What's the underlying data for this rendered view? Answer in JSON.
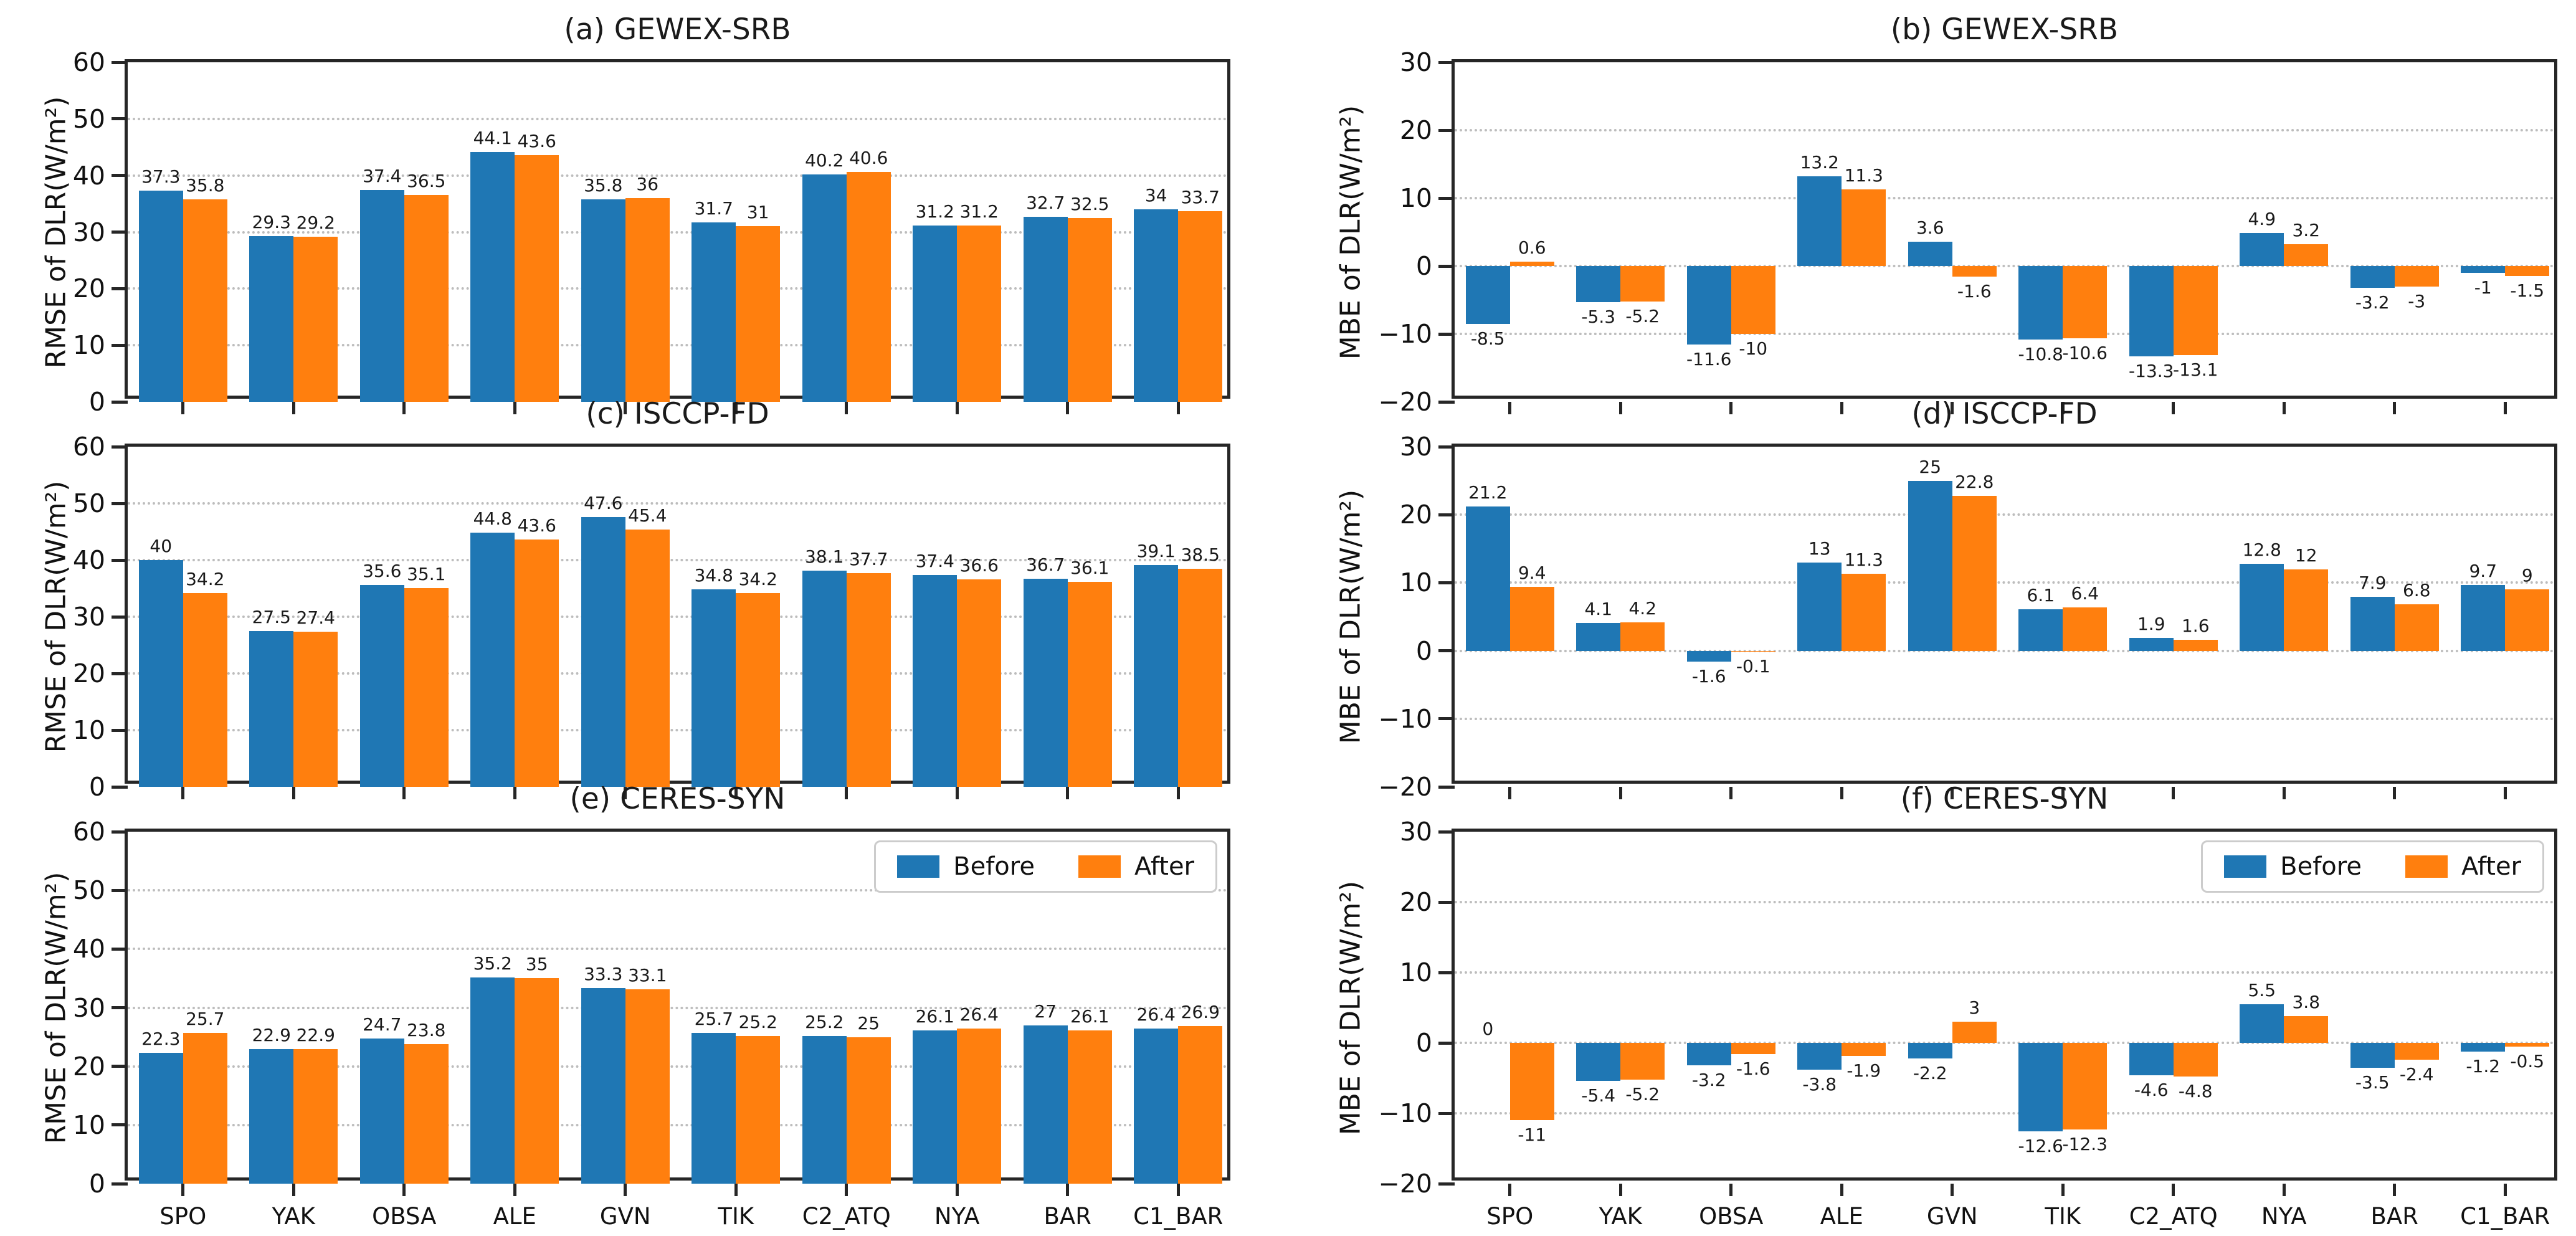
{
  "figure": {
    "categories": [
      "SPO",
      "YAK",
      "OBSA",
      "ALE",
      "GVN",
      "TIK",
      "C2_ATQ",
      "NYA",
      "BAR",
      "C1_BAR"
    ],
    "colors": {
      "before": "#1f77b4",
      "after": "#ff7f0e",
      "spine": "#262626",
      "grid": "#bdbdbd"
    },
    "legend": {
      "entries": [
        "Before",
        "After"
      ],
      "position": "upper right"
    }
  },
  "chart_data": [
    {
      "type": "bar",
      "panel": "a",
      "title": "(a) GEWEX-SRB",
      "ylabel": "RMSE of DLR(W/m²)",
      "ylim": [
        0,
        60
      ],
      "yticks": [
        0,
        10,
        20,
        30,
        40,
        50,
        60
      ],
      "grid": true,
      "categories": [
        "SPO",
        "YAK",
        "OBSA",
        "ALE",
        "GVN",
        "TIK",
        "C2_ATQ",
        "NYA",
        "BAR",
        "C1_BAR"
      ],
      "series": [
        {
          "name": "Before",
          "values": [
            37.3,
            29.3,
            37.4,
            44.1,
            35.8,
            31.7,
            40.2,
            31.2,
            32.7,
            34
          ]
        },
        {
          "name": "After",
          "values": [
            35.8,
            29.2,
            36.5,
            43.6,
            36,
            31,
            40.6,
            31.2,
            32.5,
            33.7
          ]
        }
      ],
      "show_legend": false,
      "show_xlabels": false
    },
    {
      "type": "bar",
      "panel": "b",
      "title": "(b) GEWEX-SRB",
      "ylabel": "MBE of DLR(W/m²)",
      "ylim": [
        -20,
        30
      ],
      "yticks": [
        -20,
        -10,
        0,
        10,
        20,
        30
      ],
      "grid": true,
      "categories": [
        "SPO",
        "YAK",
        "OBSA",
        "ALE",
        "GVN",
        "TIK",
        "C2_ATQ",
        "NYA",
        "BAR",
        "C1_BAR"
      ],
      "series": [
        {
          "name": "Before",
          "values": [
            -8.5,
            -5.3,
            -11.6,
            13.2,
            3.6,
            -10.8,
            -13.3,
            4.9,
            -3.2,
            -1
          ]
        },
        {
          "name": "After",
          "values": [
            0.6,
            -5.2,
            -10,
            11.3,
            -1.6,
            -10.6,
            -13.1,
            3.2,
            -3,
            -1.5
          ]
        }
      ],
      "show_legend": false,
      "show_xlabels": false
    },
    {
      "type": "bar",
      "panel": "c",
      "title": "(c) ISCCP-FD",
      "ylabel": "RMSE of DLR(W/m²)",
      "ylim": [
        0,
        60
      ],
      "yticks": [
        0,
        10,
        20,
        30,
        40,
        50,
        60
      ],
      "grid": true,
      "categories": [
        "SPO",
        "YAK",
        "OBSA",
        "ALE",
        "GVN",
        "TIK",
        "C2_ATQ",
        "NYA",
        "BAR",
        "C1_BAR"
      ],
      "series": [
        {
          "name": "Before",
          "values": [
            40,
            27.5,
            35.6,
            44.8,
            47.6,
            34.8,
            38.1,
            37.4,
            36.7,
            39.1
          ]
        },
        {
          "name": "After",
          "values": [
            34.2,
            27.4,
            35.1,
            43.6,
            45.4,
            34.2,
            37.7,
            36.6,
            36.1,
            38.5
          ]
        }
      ],
      "show_legend": false,
      "show_xlabels": false
    },
    {
      "type": "bar",
      "panel": "d",
      "title": "(d) ISCCP-FD",
      "ylabel": "MBE of DLR(W/m²)",
      "ylim": [
        -20,
        30
      ],
      "yticks": [
        -20,
        -10,
        0,
        10,
        20,
        30
      ],
      "grid": true,
      "categories": [
        "SPO",
        "YAK",
        "OBSA",
        "ALE",
        "GVN",
        "TIK",
        "C2_ATQ",
        "NYA",
        "BAR",
        "C1_BAR"
      ],
      "series": [
        {
          "name": "Before",
          "values": [
            21.2,
            4.1,
            -1.6,
            13,
            25,
            6.1,
            1.9,
            12.8,
            7.9,
            9.7
          ]
        },
        {
          "name": "After",
          "values": [
            9.4,
            4.2,
            -0.1,
            11.3,
            22.8,
            6.4,
            1.6,
            12,
            6.8,
            9
          ]
        }
      ],
      "show_legend": false,
      "show_xlabels": false
    },
    {
      "type": "bar",
      "panel": "e",
      "title": "(e) CERES-SYN",
      "ylabel": "RMSE of DLR(W/m²)",
      "ylim": [
        0,
        60
      ],
      "yticks": [
        0,
        10,
        20,
        30,
        40,
        50,
        60
      ],
      "grid": true,
      "categories": [
        "SPO",
        "YAK",
        "OBSA",
        "ALE",
        "GVN",
        "TIK",
        "C2_ATQ",
        "NYA",
        "BAR",
        "C1_BAR"
      ],
      "series": [
        {
          "name": "Before",
          "values": [
            22.3,
            22.9,
            24.7,
            35.2,
            33.3,
            25.7,
            25.2,
            26.1,
            27,
            26.4
          ]
        },
        {
          "name": "After",
          "values": [
            25.7,
            22.9,
            23.8,
            35,
            33.1,
            25.2,
            25,
            26.4,
            26.1,
            26.9
          ]
        }
      ],
      "show_legend": true,
      "show_xlabels": true
    },
    {
      "type": "bar",
      "panel": "f",
      "title": "(f) CERES-SYN",
      "ylabel": "MBE of DLR(W/m²)",
      "ylim": [
        -20,
        30
      ],
      "yticks": [
        -20,
        -10,
        0,
        10,
        20,
        30
      ],
      "grid": true,
      "categories": [
        "SPO",
        "YAK",
        "OBSA",
        "ALE",
        "GVN",
        "TIK",
        "C2_ATQ",
        "NYA",
        "BAR",
        "C1_BAR"
      ],
      "series": [
        {
          "name": "Before",
          "values": [
            0,
            -5.4,
            -3.2,
            -3.8,
            -2.2,
            -12.6,
            -4.6,
            5.5,
            -3.5,
            -1.2
          ]
        },
        {
          "name": "After",
          "values": [
            -11,
            -5.2,
            -1.6,
            -1.9,
            3,
            -12.3,
            -4.8,
            3.8,
            -2.4,
            -0.5
          ]
        }
      ],
      "show_legend": true,
      "show_xlabels": true
    }
  ]
}
